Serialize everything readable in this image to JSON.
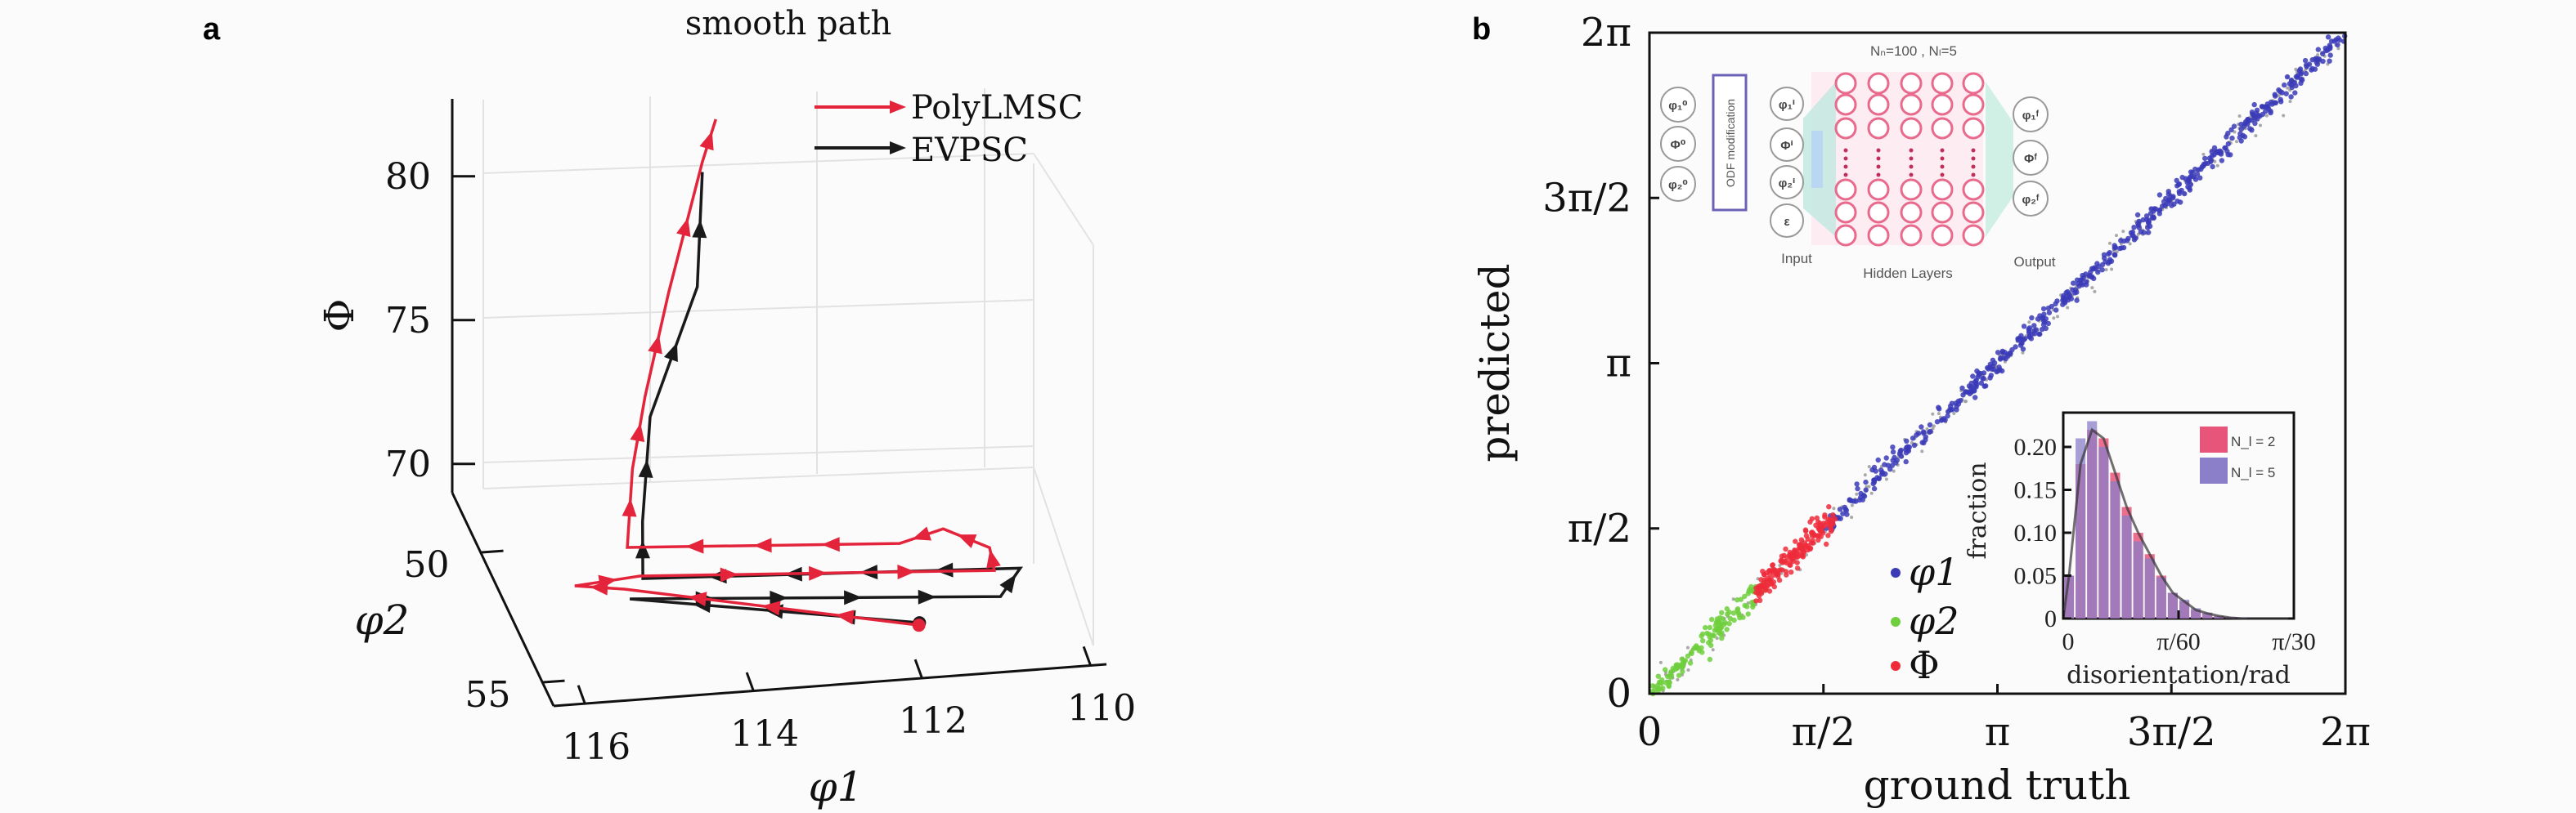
{
  "panels": {
    "a_label": "a",
    "b_label": "b"
  },
  "chart_data": [
    {
      "type": "line3d",
      "title": "smooth path",
      "axes": {
        "phi1": {
          "label": "φ1",
          "ticks": [
            "116",
            "114",
            "112",
            "110"
          ],
          "range": [
            110,
            116.38
          ]
        },
        "phi2": {
          "label": "φ2",
          "ticks": [
            "50",
            "55"
          ],
          "range": [
            47.7,
            55.9
          ]
        },
        "Phi": {
          "label": "Φ",
          "ticks": [
            "70",
            "75",
            "80"
          ],
          "range": [
            69,
            82.6
          ]
        }
      },
      "legend": {
        "position": "top-right",
        "entries": [
          "PolyLMSC",
          "EVPSC"
        ]
      },
      "series": [
        {
          "name": "PolyLMSC",
          "color": "#e3243b",
          "points": [
            [
              111.75,
              53.95,
              69
            ],
            [
              114.93,
              51.77,
              69
            ],
            [
              115.48,
              51.51,
              69
            ],
            [
              114.68,
              51.33,
              69
            ],
            [
              110.59,
              52.13,
              69
            ],
            [
              110.52,
              51.27,
              69
            ],
            [
              110.95,
              50.44,
              69
            ],
            [
              111.53,
              50.86,
              69
            ],
            [
              114.67,
              50.23,
              69
            ],
            [
              114.43,
              49,
              70.56
            ],
            [
              114.28,
              49,
              73.05
            ],
            [
              114.0,
              49,
              76.6
            ],
            [
              113.6,
              49,
              81.05
            ],
            [
              113.44,
              49,
              82.5
            ]
          ]
        },
        {
          "name": "EVPSC",
          "color": "#1a1a1a",
          "points": [
            [
              111.73,
              53.86,
              69
            ],
            [
              114.92,
              52.15,
              69
            ],
            [
              110.66,
              53.12,
              69
            ],
            [
              110.28,
              52.12,
              69
            ],
            [
              114.66,
              51.43,
              69
            ],
            [
              114.31,
              49,
              68.7
            ],
            [
              114.22,
              49,
              72.33
            ],
            [
              113.66,
              49,
              76.72
            ],
            [
              113.6,
              49,
              80.7
            ]
          ]
        }
      ]
    },
    {
      "type": "scatter",
      "xlabel": "ground truth",
      "ylabel": "predicted",
      "xlim": [
        0,
        6.2832
      ],
      "ylim": [
        0,
        6.2832
      ],
      "xticks": [
        {
          "v": 0,
          "label": "0"
        },
        {
          "v": 1.5708,
          "label": "π/2"
        },
        {
          "v": 3.1416,
          "label": "π"
        },
        {
          "v": 4.7124,
          "label": "3π/2"
        },
        {
          "v": 6.2832,
          "label": "2π"
        }
      ],
      "yticks": [
        {
          "v": 0,
          "label": "0"
        },
        {
          "v": 1.5708,
          "label": "π/2"
        },
        {
          "v": 3.1416,
          "label": "π"
        },
        {
          "v": 4.7124,
          "label": "3π/2"
        },
        {
          "v": 6.2832,
          "label": "2π"
        }
      ],
      "legend": {
        "position": "bottom-center",
        "entries": [
          "φ1",
          "φ2",
          "Φ"
        ]
      },
      "series": [
        {
          "name": "reference",
          "color": "#9a9a9a",
          "x_range": [
            0,
            6.2832
          ],
          "spread": 0.06,
          "n": 260
        },
        {
          "name": "φ1",
          "color": "#3b3bb8",
          "x_range": [
            1.6,
            6.2832
          ],
          "spread": 0.045,
          "n": 520
        },
        {
          "name": "φ2",
          "color": "#6fcf3c",
          "x_range": [
            0.02,
            1.05
          ],
          "spread": 0.05,
          "n": 140
        },
        {
          "name": "Φ",
          "color": "#ee2b3b",
          "x_range": [
            0.95,
            1.7
          ],
          "spread": 0.06,
          "n": 170
        }
      ]
    },
    {
      "type": "bar",
      "subtype": "histogram-inset",
      "xlabel": "disorientation/rad",
      "ylabel": "fraction",
      "xlim": [
        0,
        0.10472
      ],
      "ylim": [
        0,
        0.24
      ],
      "xticks": [
        {
          "v": 0,
          "label": "0"
        },
        {
          "v": 0.05236,
          "label": "π/60"
        },
        {
          "v": 0.10472,
          "label": "π/30"
        }
      ],
      "yticks": [
        {
          "v": 0,
          "label": "0"
        },
        {
          "v": 0.05,
          "label": "0.05"
        },
        {
          "v": 0.1,
          "label": "0.10"
        },
        {
          "v": 0.15,
          "label": "0.15"
        },
        {
          "v": 0.2,
          "label": "0.20"
        }
      ],
      "bins": 20,
      "legend": {
        "position": "top-right",
        "entries": [
          "N_l = 2",
          "N_l = 5"
        ]
      },
      "series": [
        {
          "name": "N_l = 2",
          "color": "#e8557a",
          "values": [
            0.05,
            0.18,
            0.22,
            0.21,
            0.17,
            0.13,
            0.1,
            0.075,
            0.05,
            0.03,
            0.02,
            0.01,
            0.006,
            0.003,
            0.001,
            0,
            0,
            0,
            0,
            0
          ]
        },
        {
          "name": "N_l = 5",
          "color": "#8a7fc8",
          "values": [
            0.05,
            0.21,
            0.23,
            0.2,
            0.16,
            0.12,
            0.09,
            0.07,
            0.048,
            0.03,
            0.022,
            0.012,
            0.007,
            0.003,
            0.002,
            0.001,
            0,
            0,
            0,
            0
          ]
        }
      ]
    }
  ],
  "network": {
    "params": "Nₙ=100 , Nₗ=5",
    "odf_label": "ODF modification",
    "input_label": "Input",
    "hidden_label": "Hidden Layers",
    "output_label": "Output",
    "initial_nodes": [
      "φ₁⁰",
      "Φ⁰",
      "φ₂⁰"
    ],
    "input_nodes": [
      "φ₁ⁱ",
      "Φⁱ",
      "φ₂ⁱ",
      "ε"
    ],
    "output_nodes": [
      "φ₁ᶠ",
      "Φᶠ",
      "φ₂ᶠ"
    ]
  }
}
